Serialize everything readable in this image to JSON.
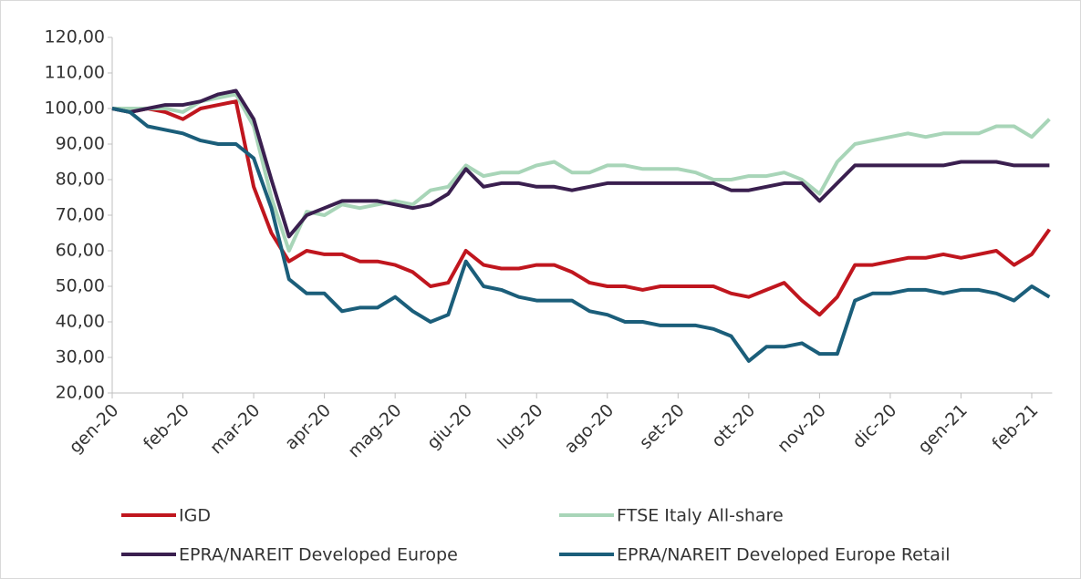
{
  "chart_data": {
    "type": "line",
    "categories": [
      "gen-20",
      null,
      null,
      null,
      "feb-20",
      null,
      null,
      null,
      "mar-20",
      null,
      null,
      null,
      "apr-20",
      null,
      null,
      null,
      "mag-20",
      null,
      null,
      null,
      "giu-20",
      null,
      null,
      null,
      "lug-20",
      null,
      null,
      null,
      "ago-20",
      null,
      null,
      null,
      "set-20",
      null,
      null,
      null,
      "ott-20",
      null,
      null,
      null,
      "nov-20",
      null,
      null,
      null,
      "dic-20",
      null,
      null,
      null,
      "gen-21",
      null,
      null,
      null,
      "feb-21",
      null
    ],
    "series": [
      {
        "name": "IGD",
        "color": "#c0161e",
        "values": [
          100,
          99,
          100,
          99,
          97,
          100,
          101,
          102,
          78,
          65,
          57,
          60,
          59,
          59,
          57,
          57,
          56,
          54,
          50,
          51,
          60,
          56,
          55,
          55,
          56,
          56,
          54,
          51,
          50,
          50,
          49,
          50,
          50,
          50,
          50,
          48,
          47,
          49,
          51,
          46,
          42,
          47,
          56,
          56,
          57,
          58,
          58,
          59,
          58,
          59,
          60,
          56,
          59,
          66
        ]
      },
      {
        "name": "FTSE Italy All-share",
        "color": "#a8d5b8",
        "values": [
          100,
          100,
          100,
          100,
          99,
          102,
          103,
          104,
          95,
          75,
          60,
          71,
          70,
          73,
          72,
          73,
          74,
          73,
          77,
          78,
          84,
          81,
          82,
          82,
          84,
          85,
          82,
          82,
          84,
          84,
          83,
          83,
          83,
          82,
          80,
          80,
          81,
          81,
          82,
          80,
          76,
          85,
          90,
          91,
          92,
          93,
          92,
          93,
          93,
          93,
          95,
          95,
          92,
          97
        ]
      },
      {
        "name": "EPRA/NAREIT Developed Europe",
        "color": "#3a1f4f",
        "values": [
          100,
          99,
          100,
          101,
          101,
          102,
          104,
          105,
          97,
          80,
          64,
          70,
          72,
          74,
          74,
          74,
          73,
          72,
          73,
          76,
          83,
          78,
          79,
          79,
          78,
          78,
          77,
          78,
          79,
          79,
          79,
          79,
          79,
          79,
          79,
          77,
          77,
          78,
          79,
          79,
          74,
          79,
          84,
          84,
          84,
          84,
          84,
          84,
          85,
          85,
          85,
          84,
          84,
          84
        ]
      },
      {
        "name": "EPRA/NAREIT Developed Europe Retail",
        "color": "#1b5e7a",
        "values": [
          100,
          99,
          95,
          94,
          93,
          91,
          90,
          90,
          86,
          72,
          52,
          48,
          48,
          43,
          44,
          44,
          47,
          43,
          40,
          42,
          57,
          50,
          49,
          47,
          46,
          46,
          46,
          43,
          42,
          40,
          40,
          39,
          39,
          39,
          38,
          36,
          29,
          33,
          33,
          34,
          31,
          31,
          46,
          48,
          48,
          49,
          49,
          48,
          49,
          49,
          48,
          46,
          50,
          47
        ]
      }
    ],
    "ylim": [
      20,
      120
    ],
    "yticks": [
      {
        "value": 20,
        "label": "20,00"
      },
      {
        "value": 30,
        "label": "30,00"
      },
      {
        "value": 40,
        "label": "40,00"
      },
      {
        "value": 50,
        "label": "50,00"
      },
      {
        "value": 60,
        "label": "60,00"
      },
      {
        "value": 70,
        "label": "70,00"
      },
      {
        "value": 80,
        "label": "80,00"
      },
      {
        "value": 90,
        "label": "90,00"
      },
      {
        "value": 100,
        "label": "100,00"
      },
      {
        "value": 110,
        "label": "110,00"
      },
      {
        "value": 120,
        "label": "120,00"
      }
    ],
    "grid": false,
    "legend": "bottom"
  }
}
